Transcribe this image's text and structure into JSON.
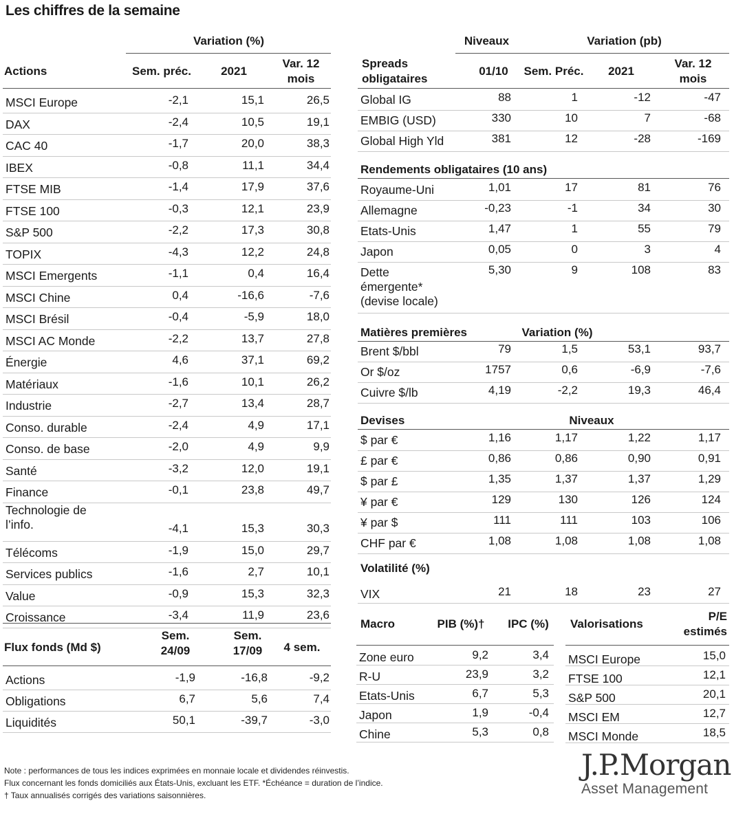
{
  "title": "Les chiffres de la semaine",
  "actions": {
    "group_header": "Variation (%)",
    "headers": [
      "Actions",
      "Sem. préc.",
      "2021",
      "Var. 12\nmois"
    ],
    "rows": [
      [
        "MSCI Europe",
        "-2,1",
        "15,1",
        "26,5"
      ],
      [
        "DAX",
        "-2,4",
        "10,5",
        "19,1"
      ],
      [
        "CAC 40",
        "-1,7",
        "20,0",
        "38,3"
      ],
      [
        "IBEX",
        "-0,8",
        "11,1",
        "34,4"
      ],
      [
        "FTSE MIB",
        "-1,4",
        "17,9",
        "37,6"
      ],
      [
        "FTSE 100",
        "-0,3",
        "12,1",
        "23,9"
      ],
      [
        "S&P 500",
        "-2,2",
        "17,3",
        "30,8"
      ],
      [
        "TOPIX",
        "-4,3",
        "12,2",
        "24,8"
      ],
      [
        "MSCI Emergents",
        "-1,1",
        "0,4",
        "16,4"
      ],
      [
        "MSCI Chine",
        "0,4",
        "-16,6",
        "-7,6"
      ],
      [
        "MSCI Brésil",
        "-0,4",
        "-5,9",
        "18,0"
      ],
      [
        "MSCI AC Monde",
        "-2,2",
        "13,7",
        "27,8"
      ],
      [
        " Énergie",
        "4,6",
        "37,1",
        "69,2"
      ],
      [
        " Matériaux",
        "-1,6",
        "10,1",
        "26,2"
      ],
      [
        " Industrie",
        "-2,7",
        "13,4",
        "28,7"
      ],
      [
        " Conso. durable",
        "-2,4",
        "4,9",
        "17,1"
      ],
      [
        " Conso. de base",
        "-2,0",
        "4,9",
        "9,9"
      ],
      [
        " Santé",
        "-3,2",
        "12,0",
        "19,1"
      ],
      [
        " Finance",
        "-0,1",
        "23,8",
        "49,7"
      ],
      [
        " Technologie de\n   l’info.",
        "-4,1",
        "15,3",
        "30,3"
      ],
      [
        " Télécoms",
        "-1,9",
        "15,0",
        "29,7"
      ],
      [
        " Services publics",
        "-1,6",
        "2,7",
        "10,1"
      ],
      [
        " Value",
        "-0,9",
        "15,3",
        "32,3"
      ],
      [
        " Croissance",
        "-3,4",
        "11,9",
        "23,6"
      ]
    ]
  },
  "flux": {
    "headers": [
      "Flux fonds (Md $)",
      "Sem.\n24/09",
      "Sem.\n17/09",
      "4 sem."
    ],
    "rows": [
      [
        "Actions",
        "-1,9",
        "-16,8",
        "-9,2"
      ],
      [
        "Obligations",
        "6,7",
        "5,6",
        "7,4"
      ],
      [
        "Liquidités",
        "50,1",
        "-39,7",
        "-3,0"
      ]
    ]
  },
  "spreads": {
    "group_header_1": "Niveaux",
    "group_header_2": "Variation (pb)",
    "headers": [
      "Spreads\nobligataires",
      "01/10",
      "Sem. Préc.",
      "2021",
      "Var. 12\nmois"
    ],
    "rows": [
      [
        "Global IG",
        "88",
        "1",
        "-12",
        "-47"
      ],
      [
        "EMBIG (USD)",
        "330",
        "10",
        "7",
        "-68"
      ],
      [
        "Global High Yld",
        "381",
        "12",
        "-28",
        "-169"
      ]
    ]
  },
  "rendements": {
    "header": "Rendements obligataires (10 ans)",
    "rows": [
      [
        "Royaume-Uni",
        "1,01",
        "17",
        "81",
        "76"
      ],
      [
        "Allemagne",
        "-0,23",
        "-1",
        "34",
        "30"
      ],
      [
        "Etats-Unis",
        "1,47",
        "1",
        "55",
        "79"
      ],
      [
        "Japon",
        "0,05",
        "0",
        "3",
        "4"
      ],
      [
        "Dette\némergente*\n(devise locale)",
        "5,30",
        "9",
        "108",
        "83"
      ]
    ]
  },
  "matieres": {
    "header": "Matières premières",
    "group_header": "Variation (%)",
    "rows": [
      [
        "Brent $/bbl",
        "79",
        "1,5",
        "53,1",
        "93,7"
      ],
      [
        "Or $/oz",
        "1757",
        "0,6",
        "-6,9",
        "-7,6"
      ],
      [
        "Cuivre $/lb",
        "4,19",
        "-2,2",
        "19,3",
        "46,4"
      ]
    ]
  },
  "devises": {
    "header": "Devises",
    "group_header": "Niveaux",
    "rows": [
      [
        "$ par €",
        "1,16",
        "1,17",
        "1,22",
        "1,17"
      ],
      [
        "£ par €",
        "0,86",
        "0,86",
        "0,90",
        "0,91"
      ],
      [
        "$ par £",
        "1,35",
        "1,37",
        "1,37",
        "1,29"
      ],
      [
        "¥ par €",
        "129",
        "130",
        "126",
        "124"
      ],
      [
        "¥ par $",
        "111",
        "111",
        "103",
        "106"
      ],
      [
        "CHF par €",
        "1,08",
        "1,08",
        "1,08",
        "1,08"
      ]
    ]
  },
  "volatilite": {
    "header": "Volatilité (%)",
    "rows": [
      [
        "VIX",
        "21",
        "18",
        "23",
        "27"
      ]
    ]
  },
  "macro": {
    "headers": [
      "Macro",
      "PIB (%)†",
      "IPC (%)"
    ],
    "rows": [
      [
        "Zone euro",
        "9,2",
        "3,4"
      ],
      [
        "R-U",
        "23,9",
        "3,2"
      ],
      [
        "Etats-Unis",
        "6,7",
        "5,3"
      ],
      [
        "Japon",
        "1,9",
        "-0,4"
      ],
      [
        "Chine",
        "5,3",
        "0,8"
      ]
    ]
  },
  "valorisations": {
    "headers": [
      "Valorisations",
      "P/E\nestimés"
    ],
    "rows": [
      [
        "MSCI Europe",
        "15,0"
      ],
      [
        "FTSE 100",
        "12,1"
      ],
      [
        "S&P 500",
        "20,1"
      ],
      [
        "MSCI EM",
        "12,7"
      ],
      [
        "MSCI Monde",
        "18,5"
      ]
    ]
  },
  "notes": [
    "Note : performances de tous les indices exprimées en monnaie locale et dividendes réinvestis.",
    "Flux concernant les fonds domiciliés aux États-Unis, excluant les ETF. *Échéance = duration de l’indice.",
    "† Taux annualisés corrigés des variations saisonnières."
  ],
  "logo": {
    "name": "J.P.Morgan",
    "subtitle": "Asset Management",
    "color": "#333333"
  }
}
